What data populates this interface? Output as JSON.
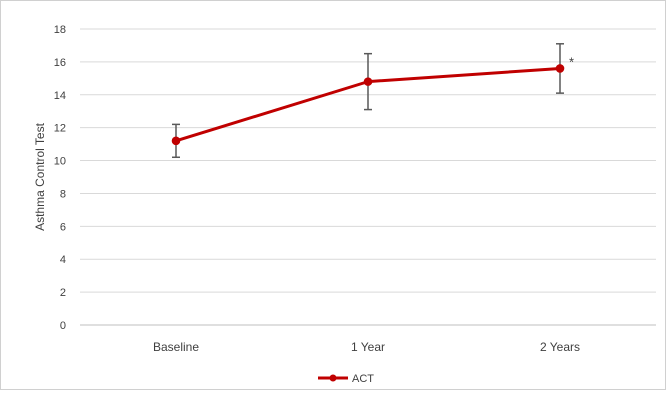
{
  "chart_data": {
    "type": "line",
    "categories": [
      "Baseline",
      "1 Year",
      "2 Years"
    ],
    "series": [
      {
        "name": "ACT",
        "values": [
          11.2,
          14.8,
          15.6
        ],
        "error": [
          1.0,
          1.7,
          1.5
        ],
        "color": "#c00000"
      }
    ],
    "annotations": [
      {
        "category": "2 Years",
        "text": "*"
      }
    ],
    "ylabel": "Asthma Control Test",
    "ylim": [
      0,
      18
    ],
    "yticks": [
      0,
      2,
      4,
      6,
      8,
      10,
      12,
      14,
      16,
      18
    ],
    "grid": true,
    "legend_position": "bottom",
    "colors": {
      "grid": "#d9d9d9",
      "axis": "#bfbfbf",
      "errorbar": "#595959",
      "text": "#404040"
    }
  }
}
